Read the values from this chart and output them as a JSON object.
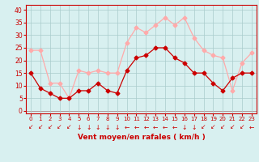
{
  "hours": [
    0,
    1,
    2,
    3,
    4,
    5,
    6,
    7,
    8,
    9,
    10,
    11,
    12,
    13,
    14,
    15,
    16,
    17,
    18,
    19,
    20,
    21,
    22,
    23
  ],
  "wind_avg": [
    15,
    9,
    7,
    5,
    5,
    8,
    8,
    11,
    8,
    7,
    16,
    21,
    22,
    25,
    25,
    21,
    19,
    15,
    15,
    11,
    8,
    13,
    15,
    15
  ],
  "wind_gust": [
    24,
    24,
    11,
    11,
    5,
    16,
    15,
    16,
    15,
    15,
    27,
    33,
    31,
    34,
    37,
    34,
    37,
    29,
    24,
    22,
    21,
    8,
    19,
    23
  ],
  "wind_avg_color": "#cc0000",
  "wind_gust_color": "#ffaaaa",
  "bg_color": "#d8f0f0",
  "grid_color": "#aacccc",
  "axis_color": "#cc0000",
  "xlabel": "Vent moyen/en rafales ( km/h )",
  "xlabel_color": "#cc0000",
  "yticks": [
    0,
    5,
    10,
    15,
    20,
    25,
    30,
    35,
    40
  ],
  "ylim": [
    -1,
    42
  ],
  "xlim": [
    -0.5,
    23.5
  ],
  "arrow_labels": [
    "↙",
    "↙",
    "↙",
    "↙",
    "↙",
    "↓",
    "↓",
    "↓",
    "↓",
    "↓",
    "←",
    "←",
    "←",
    "←",
    "←",
    "←",
    "↓",
    "↓",
    "↙",
    "↙",
    "↙",
    "↙",
    "↙",
    "←"
  ]
}
